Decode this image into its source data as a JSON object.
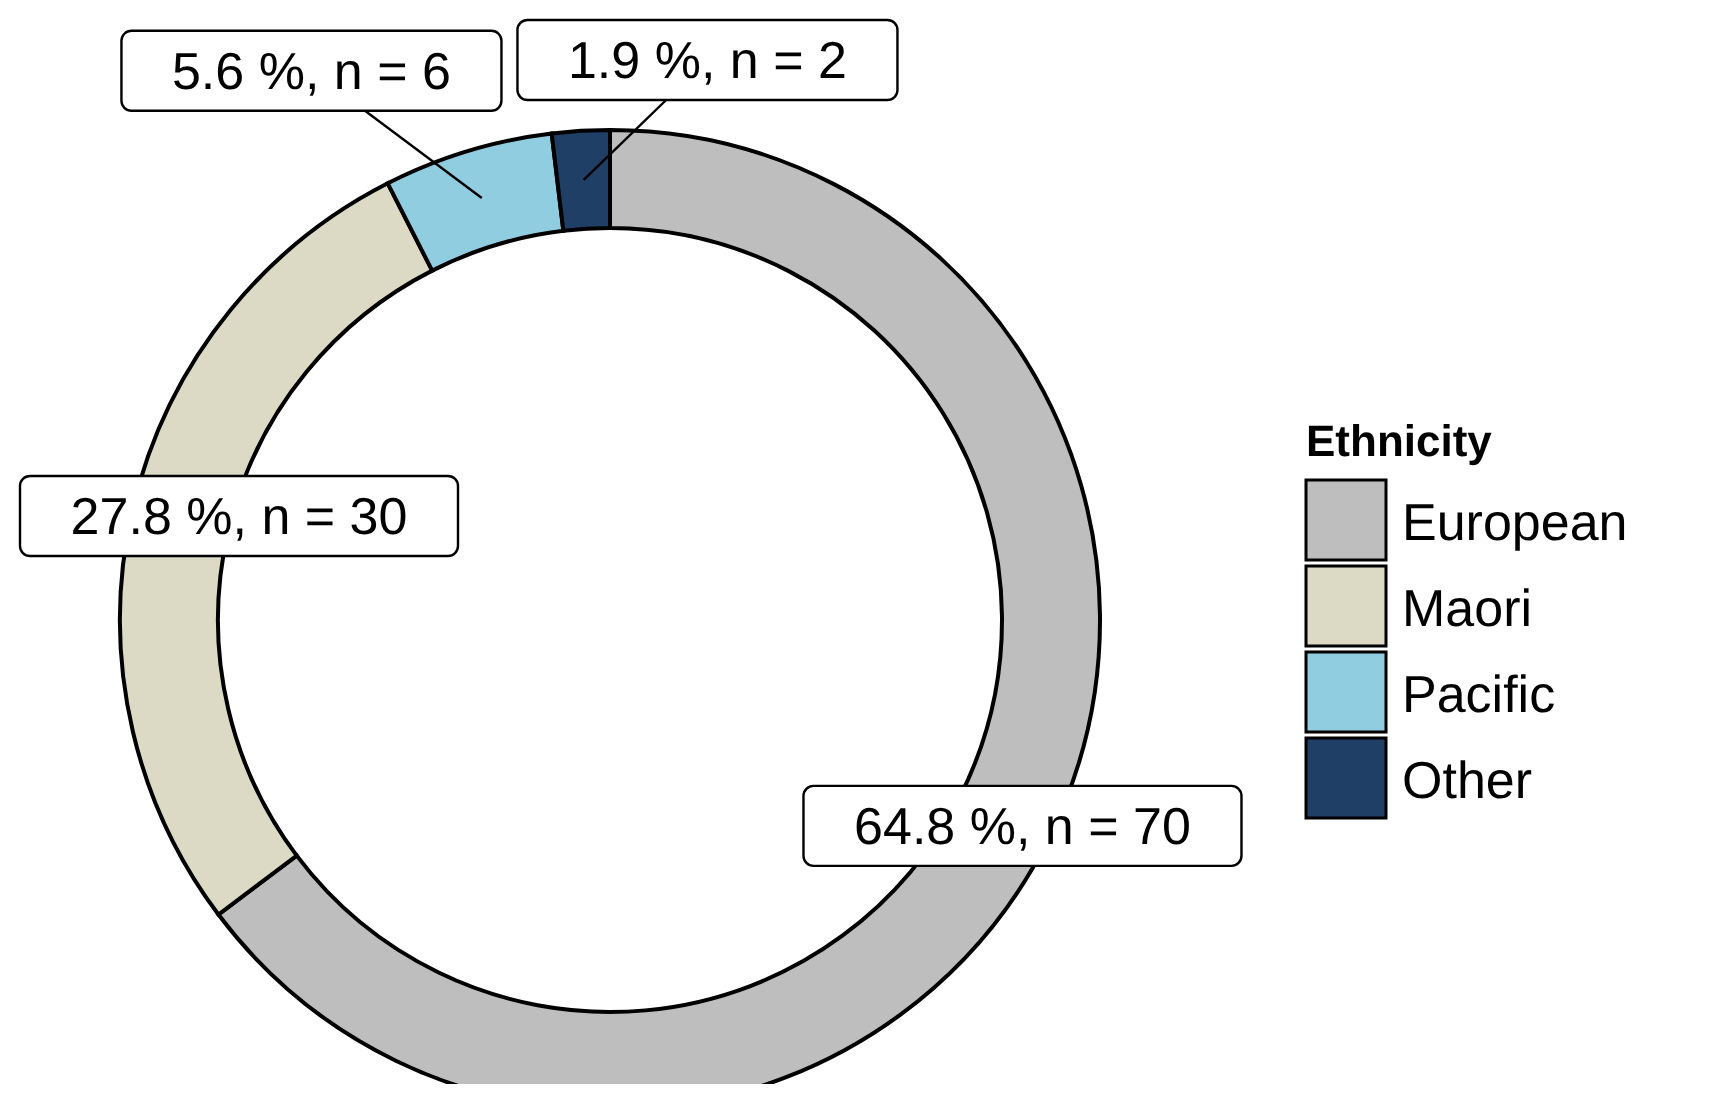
{
  "chart_data": {
    "type": "donut",
    "legend_title": "Ethnicity",
    "legend": "right",
    "categories": [
      "European",
      "Maori",
      "Pacific",
      "Other"
    ],
    "values": [
      64.8,
      27.8,
      5.6,
      1.9
    ],
    "value_labels": [
      "64.8 %, n = 70",
      "27.8 %, n = 30",
      "5.6 %, n = 6",
      "1.9 %, n = 2"
    ],
    "colors": [
      "#bebebe",
      "#dcdac5",
      "#90cde0",
      "#1f3f66"
    ]
  }
}
